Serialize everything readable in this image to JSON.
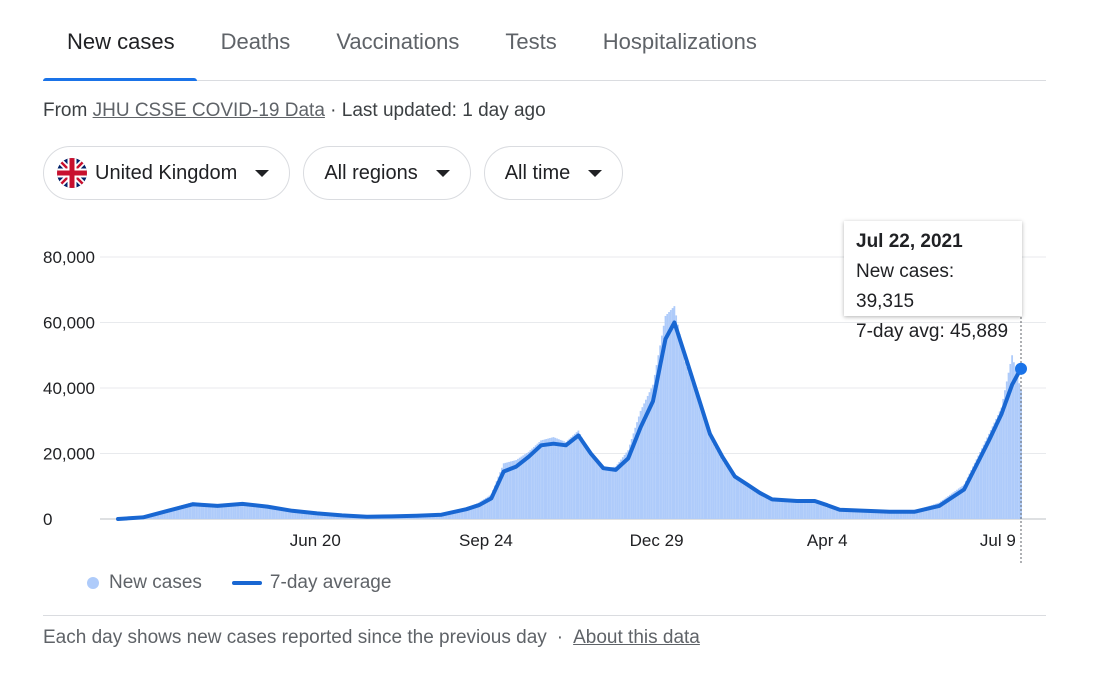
{
  "tabs": [
    {
      "label": "New cases",
      "active": true
    },
    {
      "label": "Deaths",
      "active": false
    },
    {
      "label": "Vaccinations",
      "active": false
    },
    {
      "label": "Tests",
      "active": false
    },
    {
      "label": "Hospitalizations",
      "active": false
    }
  ],
  "source": {
    "prefix": "From ",
    "link": "JHU CSSE COVID-19 Data",
    "suffix": " · Last updated: 1 day ago"
  },
  "filters": {
    "country": "United Kingdom",
    "region": "All regions",
    "time": "All time"
  },
  "tooltip": {
    "date": "Jul 22, 2021",
    "cases": "New cases: 39,315",
    "avg": "7-day avg: 45,889"
  },
  "legend": {
    "cases": "New cases",
    "avg": "7-day average"
  },
  "footer": {
    "note": "Each day shows new cases reported since the previous day",
    "separator": "·",
    "link": "About this data"
  },
  "colors": {
    "bars": "#aecbfa",
    "line": "#1967d2",
    "accent": "#1a73e8"
  },
  "chart_data": {
    "type": "area",
    "start_date": "2020-03-01",
    "end_date": "2021-07-22",
    "ylim": [
      0,
      80000
    ],
    "y_ticks": [
      "80,000",
      "60,000",
      "40,000",
      "20,000",
      "0"
    ],
    "x_ticks": [
      {
        "label": "Jun 20",
        "date": "2020-06-20"
      },
      {
        "label": "Sep 24",
        "date": "2020-09-24"
      },
      {
        "label": "Dec 29",
        "date": "2020-12-29"
      },
      {
        "label": "Apr 4",
        "date": "2021-04-04"
      },
      {
        "label": "Jul 9",
        "date": "2021-07-09"
      }
    ],
    "series": [
      {
        "name": "7-day average",
        "points": [
          [
            "2020-03-01",
            0
          ],
          [
            "2020-03-15",
            500
          ],
          [
            "2020-03-29",
            2500
          ],
          [
            "2020-04-12",
            4500
          ],
          [
            "2020-04-26",
            4000
          ],
          [
            "2020-05-10",
            4600
          ],
          [
            "2020-05-24",
            3800
          ],
          [
            "2020-06-07",
            2500
          ],
          [
            "2020-06-21",
            1700
          ],
          [
            "2020-07-05",
            1100
          ],
          [
            "2020-07-19",
            700
          ],
          [
            "2020-08-02",
            800
          ],
          [
            "2020-08-16",
            1000
          ],
          [
            "2020-08-30",
            1300
          ],
          [
            "2020-09-13",
            3000
          ],
          [
            "2020-09-20",
            4200
          ],
          [
            "2020-09-27",
            6300
          ],
          [
            "2020-10-04",
            14500
          ],
          [
            "2020-10-11",
            16000
          ],
          [
            "2020-10-18",
            19000
          ],
          [
            "2020-10-25",
            22500
          ],
          [
            "2020-11-01",
            23000
          ],
          [
            "2020-11-08",
            22500
          ],
          [
            "2020-11-15",
            25500
          ],
          [
            "2020-11-22",
            20000
          ],
          [
            "2020-11-29",
            15500
          ],
          [
            "2020-12-06",
            15000
          ],
          [
            "2020-12-13",
            18500
          ],
          [
            "2020-12-20",
            28000
          ],
          [
            "2020-12-27",
            36000
          ],
          [
            "2021-01-03",
            55000
          ],
          [
            "2021-01-08",
            60000
          ],
          [
            "2021-01-14",
            50000
          ],
          [
            "2021-01-21",
            38000
          ],
          [
            "2021-01-28",
            26000
          ],
          [
            "2021-02-04",
            19000
          ],
          [
            "2021-02-11",
            13000
          ],
          [
            "2021-02-18",
            10500
          ],
          [
            "2021-02-25",
            8000
          ],
          [
            "2021-03-04",
            6000
          ],
          [
            "2021-03-18",
            5500
          ],
          [
            "2021-03-28",
            5500
          ],
          [
            "2021-04-04",
            4200
          ],
          [
            "2021-04-11",
            2800
          ],
          [
            "2021-04-25",
            2500
          ],
          [
            "2021-05-09",
            2200
          ],
          [
            "2021-05-23",
            2200
          ],
          [
            "2021-06-06",
            4000
          ],
          [
            "2021-06-20",
            9000
          ],
          [
            "2021-07-04",
            24000
          ],
          [
            "2021-07-11",
            32000
          ],
          [
            "2021-07-17",
            41000
          ],
          [
            "2021-07-22",
            46000
          ]
        ]
      },
      {
        "name": "New cases",
        "points": [
          [
            "2020-03-01",
            0
          ],
          [
            "2020-03-15",
            700
          ],
          [
            "2020-03-29",
            3000
          ],
          [
            "2020-04-12",
            5200
          ],
          [
            "2020-04-26",
            4300
          ],
          [
            "2020-05-10",
            4800
          ],
          [
            "2020-05-24",
            3600
          ],
          [
            "2020-06-07",
            2600
          ],
          [
            "2020-06-21",
            1600
          ],
          [
            "2020-07-05",
            1000
          ],
          [
            "2020-07-19",
            700
          ],
          [
            "2020-08-02",
            900
          ],
          [
            "2020-08-16",
            1100
          ],
          [
            "2020-08-30",
            1600
          ],
          [
            "2020-09-13",
            3500
          ],
          [
            "2020-09-20",
            5000
          ],
          [
            "2020-09-27",
            7500
          ],
          [
            "2020-10-04",
            17000
          ],
          [
            "2020-10-11",
            18000
          ],
          [
            "2020-10-18",
            20500
          ],
          [
            "2020-10-25",
            24000
          ],
          [
            "2020-11-01",
            25000
          ],
          [
            "2020-11-08",
            23500
          ],
          [
            "2020-11-15",
            27000
          ],
          [
            "2020-11-22",
            19500
          ],
          [
            "2020-11-29",
            15500
          ],
          [
            "2020-12-06",
            16000
          ],
          [
            "2020-12-13",
            21000
          ],
          [
            "2020-12-20",
            33000
          ],
          [
            "2020-12-27",
            41000
          ],
          [
            "2021-01-03",
            62000
          ],
          [
            "2021-01-08",
            65000
          ],
          [
            "2021-01-14",
            48000
          ],
          [
            "2021-01-21",
            37000
          ],
          [
            "2021-01-28",
            25000
          ],
          [
            "2021-02-04",
            18000
          ],
          [
            "2021-02-11",
            12500
          ],
          [
            "2021-02-18",
            10000
          ],
          [
            "2021-02-25",
            8000
          ],
          [
            "2021-03-04",
            6200
          ],
          [
            "2021-03-18",
            5800
          ],
          [
            "2021-03-28",
            5200
          ],
          [
            "2021-04-04",
            3500
          ],
          [
            "2021-04-11",
            2700
          ],
          [
            "2021-04-25",
            2600
          ],
          [
            "2021-05-09",
            2300
          ],
          [
            "2021-05-23",
            2500
          ],
          [
            "2021-06-06",
            5000
          ],
          [
            "2021-06-20",
            10500
          ],
          [
            "2021-07-04",
            26000
          ],
          [
            "2021-07-11",
            34000
          ],
          [
            "2021-07-17",
            50000
          ],
          [
            "2021-07-22",
            39315
          ]
        ]
      }
    ],
    "highlight": {
      "date": "2021-07-22",
      "new_cases": 39315,
      "avg": 45889
    }
  }
}
